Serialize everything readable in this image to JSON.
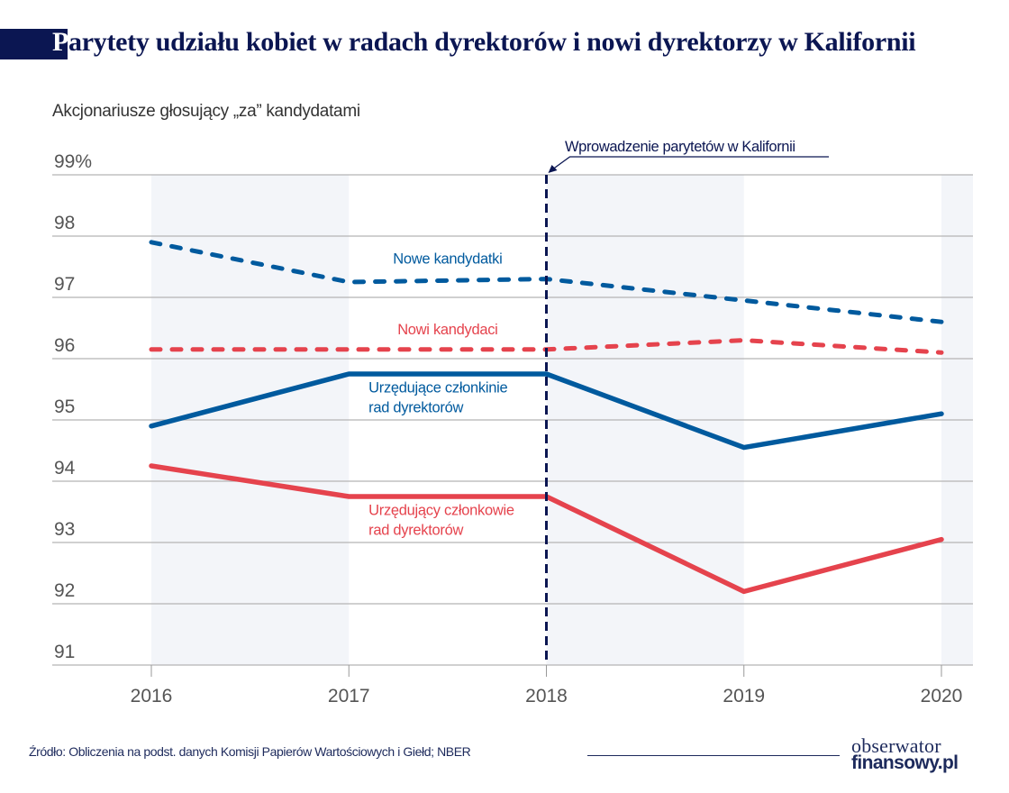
{
  "header": {
    "title_first_letter": "P",
    "title_rest": "arytety udziału kobiet w radach dyrektorów i nowi dyrektorzy w Kalifornii",
    "subtitle": "Akcjonariusze głosujący „za” kandydatami"
  },
  "footer": {
    "source": "Źródło: Obliczenia na podst. danych Komisji Papierów Wartościowych i Giełd; NBER",
    "logo_line1": "obserwator",
    "logo_line2": "finansowy.pl"
  },
  "colors": {
    "navy": "#0b1652",
    "blue": "#005a9e",
    "red": "#e5434d",
    "grid": "#b4b4b4",
    "band": "#f3f5f9",
    "tick_text": "#555555"
  },
  "chart_data": {
    "type": "line",
    "title": "Parytety udziału kobiet w radach dyrektorów i nowi dyrektorzy w Kalifornii",
    "subtitle": "Akcjonariusze głosujący „za” kandydatami",
    "xlabel": "",
    "ylabel": "",
    "x": [
      2016,
      2017,
      2018,
      2019,
      2020
    ],
    "x_tick_labels": [
      "2016",
      "2017",
      "2018",
      "2019",
      "2020"
    ],
    "ylim": [
      91,
      99
    ],
    "y_ticks": [
      91,
      92,
      93,
      94,
      95,
      96,
      97,
      98,
      99
    ],
    "y_tick_labels": [
      "91",
      "92",
      "93",
      "94",
      "95",
      "96",
      "97",
      "98",
      "99%"
    ],
    "grid": true,
    "shaded_bands": [
      [
        2016,
        2017
      ],
      [
        2018,
        2019
      ],
      [
        2020,
        2020.16
      ]
    ],
    "annotation": {
      "x": 2018,
      "text": "Wprowadzenie parytetów w Kalifornii",
      "style": "dashed-vertical-line"
    },
    "series": [
      {
        "name": "Nowe kandydatki",
        "color": "#005a9e",
        "style": "dashed",
        "values": [
          97.9,
          97.25,
          97.3,
          96.95,
          96.6
        ],
        "label_at": [
          2017.5,
          97.55
        ]
      },
      {
        "name": "Nowi kandydaci",
        "color": "#e5434d",
        "style": "dashed",
        "values": [
          96.15,
          96.15,
          96.15,
          96.3,
          96.1
        ],
        "label_at": [
          2017.5,
          96.4
        ]
      },
      {
        "name": "Urzędujące członkinie\nrad dyrektorów",
        "color": "#005a9e",
        "style": "solid",
        "values": [
          94.9,
          95.75,
          95.75,
          94.55,
          95.1
        ],
        "label_at": [
          2017.1,
          95.45
        ]
      },
      {
        "name": "Urzędujący członkowie\nrad dyrektorów",
        "color": "#e5434d",
        "style": "solid",
        "values": [
          94.25,
          93.75,
          93.75,
          92.2,
          93.05
        ],
        "label_at": [
          2017.1,
          93.45
        ]
      }
    ]
  }
}
